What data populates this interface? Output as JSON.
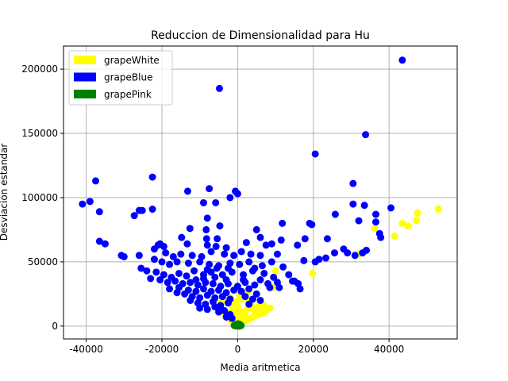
{
  "chart_data": {
    "type": "scatter",
    "title": "Reduccion de Dimensionalidad para Hu",
    "xlabel": "Media aritmetica",
    "ylabel": "Desviacion estandar",
    "xlim": [
      -46000,
      58000
    ],
    "ylim": [
      -10000,
      218000
    ],
    "x_ticks": [
      -40000,
      -20000,
      0,
      20000,
      40000
    ],
    "y_ticks": [
      0,
      50000,
      100000,
      150000,
      200000
    ],
    "grid": true,
    "legend_position": "top-left",
    "series": [
      {
        "name": "grapeWhite",
        "color": "#ffff00",
        "points": [
          [
            53000,
            91000
          ],
          [
            47500,
            88000
          ],
          [
            47200,
            82000
          ],
          [
            45000,
            78000
          ],
          [
            43500,
            80000
          ],
          [
            41500,
            70000
          ],
          [
            36200,
            76000
          ],
          [
            32000,
            56000
          ],
          [
            19800,
            41000
          ],
          [
            10000,
            43000
          ],
          [
            9200,
            30000
          ],
          [
            8000,
            13000
          ],
          [
            7500,
            12000
          ],
          [
            7000,
            11000
          ],
          [
            6500,
            10500
          ],
          [
            6000,
            9500
          ],
          [
            5500,
            9000
          ],
          [
            5000,
            8500
          ],
          [
            4500,
            8000
          ],
          [
            4000,
            7000
          ],
          [
            3500,
            6500
          ],
          [
            3000,
            5500
          ],
          [
            2500,
            5000
          ],
          [
            2000,
            4000
          ],
          [
            1500,
            3500
          ],
          [
            1000,
            2500
          ],
          [
            500,
            1500
          ],
          [
            -500,
            2000
          ],
          [
            -1000,
            3000
          ],
          [
            -1500,
            4000
          ],
          [
            -2000,
            5000
          ],
          [
            -3000,
            8000
          ],
          [
            -4000,
            11000
          ],
          [
            -5000,
            14000
          ],
          [
            -6000,
            17000
          ],
          [
            -2500,
            10000
          ],
          [
            -1000,
            12000
          ],
          [
            1000,
            11000
          ],
          [
            2500,
            13000
          ],
          [
            4000,
            14000
          ],
          [
            6000,
            18000
          ],
          [
            3000,
            20000
          ],
          [
            -3000,
            20000
          ],
          [
            0,
            6000
          ],
          [
            1500,
            8000
          ],
          [
            -500,
            9000
          ],
          [
            2000,
            10500
          ],
          [
            4500,
            12500
          ],
          [
            5500,
            15000
          ],
          [
            7000,
            16000
          ],
          [
            8500,
            14000
          ],
          [
            3500,
            17000
          ],
          [
            -1500,
            16000
          ],
          [
            -4500,
            18000
          ],
          [
            -2000,
            22000
          ],
          [
            500,
            24000
          ],
          [
            2500,
            26000
          ],
          [
            0,
            15000
          ],
          [
            -500,
            19000
          ],
          [
            1000,
            21000
          ]
        ]
      },
      {
        "name": "grapeBlue",
        "color": "#0000ff",
        "points": [
          [
            43500,
            207000
          ],
          [
            -4800,
            185000
          ],
          [
            33800,
            149000
          ],
          [
            20500,
            134000
          ],
          [
            -22500,
            116000
          ],
          [
            -37500,
            113000
          ],
          [
            30500,
            111000
          ],
          [
            -13200,
            105000
          ],
          [
            -7500,
            107000
          ],
          [
            -600,
            105000
          ],
          [
            0,
            103000
          ],
          [
            -2000,
            100000
          ],
          [
            -39000,
            97000
          ],
          [
            -41000,
            95000
          ],
          [
            -9000,
            96000
          ],
          [
            -5800,
            96000
          ],
          [
            30500,
            95000
          ],
          [
            33500,
            94000
          ],
          [
            40500,
            92000
          ],
          [
            -22500,
            91000
          ],
          [
            -25200,
            90000
          ],
          [
            -26000,
            90000
          ],
          [
            -36500,
            89000
          ],
          [
            -27300,
            86000
          ],
          [
            36500,
            87000
          ],
          [
            -8000,
            84000
          ],
          [
            25800,
            87000
          ],
          [
            32000,
            82000
          ],
          [
            36500,
            81000
          ],
          [
            19000,
            80000
          ],
          [
            11800,
            80000
          ],
          [
            19600,
            79000
          ],
          [
            -4700,
            78000
          ],
          [
            -12600,
            76000
          ],
          [
            -8300,
            75000
          ],
          [
            5000,
            75000
          ],
          [
            37500,
            72000
          ],
          [
            37800,
            69000
          ],
          [
            -14800,
            69000
          ],
          [
            -8200,
            68000
          ],
          [
            -5400,
            68000
          ],
          [
            6000,
            69000
          ],
          [
            17800,
            68000
          ],
          [
            23700,
            68000
          ],
          [
            11500,
            67000
          ],
          [
            -36500,
            66000
          ],
          [
            -35000,
            64000
          ],
          [
            -21000,
            63000
          ],
          [
            -20500,
            64000
          ],
          [
            -19500,
            62000
          ],
          [
            -13300,
            64000
          ],
          [
            -8000,
            63000
          ],
          [
            -5700,
            62000
          ],
          [
            -3000,
            61000
          ],
          [
            2300,
            65000
          ],
          [
            7500,
            63000
          ],
          [
            9000,
            64000
          ],
          [
            15800,
            63000
          ],
          [
            28000,
            60000
          ],
          [
            29000,
            57000
          ],
          [
            34000,
            59000
          ],
          [
            31000,
            55000
          ],
          [
            33000,
            57000
          ],
          [
            -22000,
            60000
          ],
          [
            -19000,
            57000
          ],
          [
            -17000,
            54000
          ],
          [
            -15000,
            56000
          ],
          [
            -12000,
            55000
          ],
          [
            -9500,
            54000
          ],
          [
            -7000,
            58000
          ],
          [
            -3500,
            56000
          ],
          [
            -1000,
            55000
          ],
          [
            1000,
            58000
          ],
          [
            3500,
            56000
          ],
          [
            6000,
            55000
          ],
          [
            10500,
            56000
          ],
          [
            21500,
            52000
          ],
          [
            23300,
            53000
          ],
          [
            25600,
            57000
          ],
          [
            -30000,
            54000
          ],
          [
            -30700,
            55000
          ],
          [
            -26000,
            55000
          ],
          [
            -22000,
            52000
          ],
          [
            -20000,
            50000
          ],
          [
            -18000,
            48000
          ],
          [
            -16000,
            50000
          ],
          [
            -13000,
            49000
          ],
          [
            -10000,
            50000
          ],
          [
            -7500,
            48000
          ],
          [
            -5000,
            47000
          ],
          [
            -2000,
            49000
          ],
          [
            500,
            48000
          ],
          [
            3000,
            50000
          ],
          [
            6500,
            47000
          ],
          [
            9000,
            50000
          ],
          [
            12000,
            46000
          ],
          [
            17500,
            51000
          ],
          [
            20500,
            50000
          ],
          [
            -25500,
            45000
          ],
          [
            -24000,
            43000
          ],
          [
            -21500,
            42000
          ],
          [
            -19500,
            40000
          ],
          [
            -17500,
            38000
          ],
          [
            -15500,
            41000
          ],
          [
            -13500,
            39000
          ],
          [
            -11500,
            43000
          ],
          [
            -9000,
            40000
          ],
          [
            -7000,
            42000
          ],
          [
            -4000,
            40000
          ],
          [
            -1500,
            42000
          ],
          [
            1500,
            40000
          ],
          [
            4000,
            43000
          ],
          [
            7000,
            41000
          ],
          [
            9500,
            38000
          ],
          [
            13500,
            40000
          ],
          [
            15000,
            35000
          ],
          [
            16000,
            33000
          ],
          [
            -23000,
            37000
          ],
          [
            -20500,
            36000
          ],
          [
            -18500,
            34000
          ],
          [
            -16500,
            35000
          ],
          [
            -14500,
            33000
          ],
          [
            -12500,
            34000
          ],
          [
            -10500,
            32000
          ],
          [
            -8500,
            34000
          ],
          [
            -6500,
            33000
          ],
          [
            -4500,
            31000
          ],
          [
            -2500,
            33000
          ],
          [
            0,
            31000
          ],
          [
            2000,
            34000
          ],
          [
            4500,
            32000
          ],
          [
            6000,
            36000
          ],
          [
            8500,
            30000
          ],
          [
            11000,
            30000
          ],
          [
            14500,
            35000
          ],
          [
            16500,
            29000
          ],
          [
            -15500,
            30000
          ],
          [
            -13000,
            28000
          ],
          [
            -11000,
            27000
          ],
          [
            -9000,
            29000
          ],
          [
            -7000,
            27000
          ],
          [
            -5000,
            28000
          ],
          [
            -3000,
            26000
          ],
          [
            -1000,
            28000
          ],
          [
            1000,
            27000
          ],
          [
            3000,
            29000
          ],
          [
            5000,
            25000
          ],
          [
            -14000,
            25000
          ],
          [
            -12000,
            23000
          ],
          [
            -10000,
            22000
          ],
          [
            -8000,
            24000
          ],
          [
            -6000,
            22000
          ],
          [
            -4000,
            23000
          ],
          [
            -2000,
            21000
          ],
          [
            2000,
            23000
          ],
          [
            4000,
            21000
          ],
          [
            6000,
            20000
          ],
          [
            -12500,
            20000
          ],
          [
            -10500,
            18000
          ],
          [
            -8500,
            17000
          ],
          [
            -6500,
            19000
          ],
          [
            -4500,
            16000
          ],
          [
            -2500,
            18000
          ],
          [
            3000,
            17000
          ],
          [
            -10000,
            14000
          ],
          [
            -8000,
            13000
          ],
          [
            -6000,
            15000
          ],
          [
            -5000,
            11000
          ],
          [
            -3500,
            12000
          ],
          [
            -2000,
            9000
          ],
          [
            -3000,
            7000
          ],
          [
            -1500,
            6000
          ],
          [
            -16000,
            26000
          ],
          [
            -18000,
            29000
          ],
          [
            -11000,
            36000
          ],
          [
            -9000,
            37000
          ],
          [
            -6000,
            38000
          ],
          [
            -3000,
            36000
          ],
          [
            1500,
            36000
          ],
          [
            8000,
            33000
          ],
          [
            10500,
            34000
          ],
          [
            -8000,
            44000
          ],
          [
            -5500,
            45000
          ],
          [
            -2500,
            45000
          ],
          [
            4500,
            45000
          ]
        ]
      },
      {
        "name": "grapePink",
        "color": "#008000",
        "points": [
          [
            0,
            1000
          ],
          [
            300,
            500
          ],
          [
            -300,
            800
          ],
          [
            500,
            1500
          ],
          [
            -500,
            1200
          ],
          [
            200,
            200
          ],
          [
            -200,
            300
          ],
          [
            700,
            900
          ],
          [
            -700,
            600
          ],
          [
            100,
            1800
          ],
          [
            -100,
            1600
          ],
          [
            400,
            0
          ],
          [
            -400,
            100
          ],
          [
            900,
            400
          ],
          [
            -900,
            500
          ]
        ]
      }
    ]
  }
}
